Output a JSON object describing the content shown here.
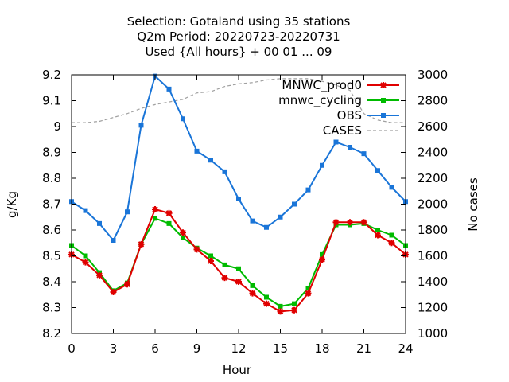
{
  "chart_data": {
    "type": "line",
    "title_lines": [
      "Selection: Gotaland using    35 stations",
      "Q2m   Period: 20220723-20220731",
      "Used {All hours} + 00 01 ... 09"
    ],
    "xlabel": "Hour",
    "ylabel": "g/Kg",
    "y2label": "No cases",
    "xlim": [
      0,
      24
    ],
    "ylim": [
      8.2,
      9.2
    ],
    "y2lim": [
      1000,
      3000
    ],
    "xticks": [
      "0",
      "3",
      "6",
      "9",
      "12",
      "15",
      "18",
      "21",
      "24"
    ],
    "yticks": [
      "8.2",
      "8.3",
      "8.4",
      "8.5",
      "8.6",
      "8.7",
      "8.8",
      "8.9",
      "9",
      "9.1",
      "9.2"
    ],
    "y2ticks": [
      "1000",
      "1200",
      "1400",
      "1600",
      "1800",
      "2000",
      "2200",
      "2400",
      "2600",
      "2800",
      "3000"
    ],
    "grid": false,
    "legend_position": "top-right",
    "x": [
      0,
      1,
      2,
      3,
      4,
      5,
      6,
      7,
      8,
      9,
      10,
      11,
      12,
      13,
      14,
      15,
      16,
      17,
      18,
      19,
      20,
      21,
      22,
      23,
      24
    ],
    "series": [
      {
        "name": "MNWC_prod0",
        "color": "#e00000",
        "marker": "star",
        "axis": "y",
        "values": [
          8.505,
          8.475,
          8.425,
          8.36,
          8.39,
          8.545,
          8.68,
          8.665,
          8.59,
          8.525,
          8.48,
          8.415,
          8.4,
          8.355,
          8.315,
          8.285,
          8.29,
          8.355,
          8.485,
          8.63,
          8.63,
          8.63,
          8.58,
          8.55,
          8.505
        ]
      },
      {
        "name": "mnwc_cycling",
        "color": "#00bb00",
        "marker": "box",
        "axis": "y",
        "values": [
          8.54,
          8.5,
          8.435,
          8.365,
          8.395,
          8.545,
          8.645,
          8.625,
          8.57,
          8.53,
          8.5,
          8.465,
          8.45,
          8.385,
          8.34,
          8.305,
          8.315,
          8.375,
          8.505,
          8.62,
          8.62,
          8.625,
          8.6,
          8.58,
          8.54
        ]
      },
      {
        "name": "OBS",
        "color": "#1a75d8",
        "marker": "box",
        "axis": "y",
        "values": [
          8.71,
          8.675,
          8.625,
          8.56,
          8.67,
          9.005,
          9.195,
          9.145,
          9.03,
          8.905,
          8.87,
          8.825,
          8.72,
          8.635,
          8.61,
          8.65,
          8.7,
          8.755,
          8.85,
          8.94,
          8.92,
          8.895,
          8.83,
          8.765,
          8.71
        ]
      },
      {
        "name": "CASES",
        "color": "#a0a0a0",
        "marker": "none",
        "dashed": true,
        "axis": "y2",
        "values": [
          2630,
          2630,
          2640,
          2670,
          2700,
          2740,
          2770,
          2790,
          2810,
          2860,
          2870,
          2910,
          2930,
          2940,
          2960,
          2970,
          2970,
          2970,
          2950,
          2920,
          2880,
          2700,
          2650,
          2630,
          2630
        ]
      }
    ]
  }
}
